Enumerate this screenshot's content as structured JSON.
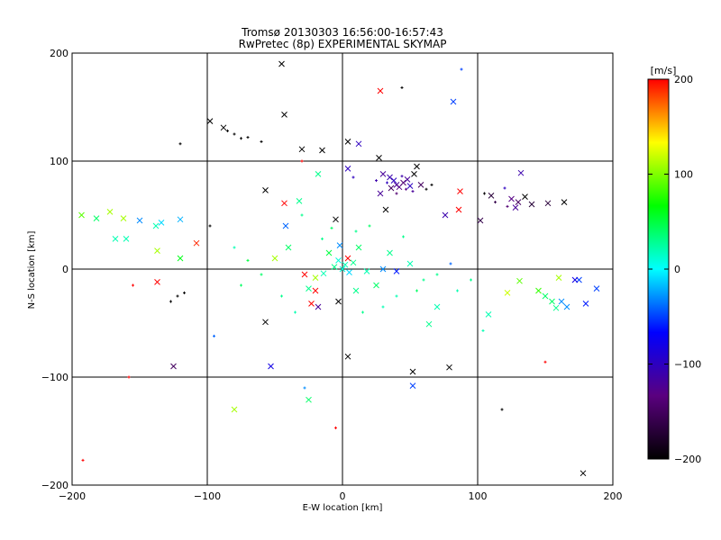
{
  "chart_data": {
    "type": "scatter",
    "title": "Tromsø 20130303 16:56:00-16:57:43",
    "subtitle": "RwPretec (8p) EXPERIMENTAL SKYMAP",
    "xlabel": "E-W location [km]",
    "ylabel": "N-S location [km]",
    "xlim": [
      -200,
      200
    ],
    "ylim": [
      -200,
      200
    ],
    "x_ticks": [
      -200,
      -100,
      0,
      100,
      200
    ],
    "y_ticks": [
      -200,
      -100,
      0,
      100,
      200
    ],
    "x_tick_labels": [
      "−200",
      "−100",
      "0",
      "100",
      "200"
    ],
    "y_tick_labels": [
      "−200",
      "−100",
      "0",
      "100",
      "200"
    ],
    "grid": true,
    "colorbar": {
      "label": "[m/s]",
      "range": [
        -200,
        200
      ],
      "ticks": [
        200,
        100,
        0,
        -100,
        -200
      ],
      "tick_labels": [
        "200",
        "100",
        "0",
        "−100",
        "−200"
      ],
      "colormap": [
        "#000000",
        "#5a007f",
        "#0000ff",
        "#00ffff",
        "#00ff00",
        "#ffff00",
        "#ff0000"
      ]
    },
    "points": [
      {
        "x": -45,
        "y": 190,
        "v": -200,
        "m": "x"
      },
      {
        "x": -43,
        "y": 143,
        "v": -200,
        "m": "x"
      },
      {
        "x": -98,
        "y": 137,
        "v": -200,
        "m": "x"
      },
      {
        "x": -88,
        "y": 131,
        "v": -200,
        "m": "x"
      },
      {
        "x": -85,
        "y": 128,
        "v": -200,
        "m": "+"
      },
      {
        "x": -80,
        "y": 125,
        "v": -200,
        "m": "+"
      },
      {
        "x": -75,
        "y": 121,
        "v": -200,
        "m": "+"
      },
      {
        "x": -70,
        "y": 122,
        "v": -200,
        "m": "+"
      },
      {
        "x": -120,
        "y": 116,
        "v": -200,
        "m": "+"
      },
      {
        "x": -60,
        "y": 118,
        "v": -200,
        "m": "+"
      },
      {
        "x": -30,
        "y": 111,
        "v": -200,
        "m": "x"
      },
      {
        "x": -15,
        "y": 110,
        "v": -200,
        "m": "x"
      },
      {
        "x": 4,
        "y": 118,
        "v": -200,
        "m": "x"
      },
      {
        "x": 12,
        "y": 116,
        "v": -100,
        "m": "x"
      },
      {
        "x": 28,
        "y": 165,
        "v": 200,
        "m": "x"
      },
      {
        "x": 44,
        "y": 168,
        "v": -200,
        "m": "+"
      },
      {
        "x": 82,
        "y": 155,
        "v": -50,
        "m": "x"
      },
      {
        "x": 88,
        "y": 185,
        "v": -50,
        "m": "+"
      },
      {
        "x": 27,
        "y": 103,
        "v": -200,
        "m": "x"
      },
      {
        "x": 4,
        "y": 93,
        "v": -100,
        "m": "x"
      },
      {
        "x": 8,
        "y": 85,
        "v": -100,
        "m": "+"
      },
      {
        "x": -30,
        "y": 100,
        "v": 200,
        "m": "+"
      },
      {
        "x": -18,
        "y": 88,
        "v": 30,
        "m": "x"
      },
      {
        "x": 30,
        "y": 88,
        "v": -120,
        "m": "x"
      },
      {
        "x": 35,
        "y": 85,
        "v": -110,
        "m": "x"
      },
      {
        "x": 38,
        "y": 82,
        "v": -100,
        "m": "x"
      },
      {
        "x": 40,
        "y": 78,
        "v": -120,
        "m": "x"
      },
      {
        "x": 42,
        "y": 76,
        "v": -130,
        "m": "x"
      },
      {
        "x": 45,
        "y": 80,
        "v": -140,
        "m": "x"
      },
      {
        "x": 48,
        "y": 83,
        "v": -120,
        "m": "x"
      },
      {
        "x": 50,
        "y": 77,
        "v": -100,
        "m": "x"
      },
      {
        "x": 53,
        "y": 88,
        "v": -200,
        "m": "x"
      },
      {
        "x": 55,
        "y": 95,
        "v": -200,
        "m": "x"
      },
      {
        "x": 36,
        "y": 75,
        "v": -150,
        "m": "x"
      },
      {
        "x": 33,
        "y": 80,
        "v": -100,
        "m": "+"
      },
      {
        "x": 44,
        "y": 86,
        "v": -110,
        "m": "+"
      },
      {
        "x": 47,
        "y": 74,
        "v": -130,
        "m": "+"
      },
      {
        "x": 52,
        "y": 72,
        "v": -120,
        "m": "+"
      },
      {
        "x": 58,
        "y": 78,
        "v": -150,
        "m": "x"
      },
      {
        "x": 62,
        "y": 74,
        "v": -200,
        "m": "+"
      },
      {
        "x": 66,
        "y": 78,
        "v": -200,
        "m": "+"
      },
      {
        "x": 28,
        "y": 70,
        "v": -120,
        "m": "x"
      },
      {
        "x": 40,
        "y": 70,
        "v": -140,
        "m": "+"
      },
      {
        "x": 25,
        "y": 82,
        "v": -110,
        "m": "+"
      },
      {
        "x": 32,
        "y": 55,
        "v": -200,
        "m": "x"
      },
      {
        "x": 87,
        "y": 72,
        "v": 200,
        "m": "x"
      },
      {
        "x": 86,
        "y": 55,
        "v": 200,
        "m": "x"
      },
      {
        "x": 76,
        "y": 50,
        "v": -110,
        "m": "x"
      },
      {
        "x": 102,
        "y": 45,
        "v": -160,
        "m": "x"
      },
      {
        "x": 120,
        "y": 75,
        "v": -100,
        "m": "+"
      },
      {
        "x": 132,
        "y": 89,
        "v": -110,
        "m": "x"
      },
      {
        "x": 125,
        "y": 65,
        "v": -130,
        "m": "x"
      },
      {
        "x": 130,
        "y": 62,
        "v": -150,
        "m": "x"
      },
      {
        "x": 128,
        "y": 57,
        "v": -120,
        "m": "x"
      },
      {
        "x": 135,
        "y": 67,
        "v": -200,
        "m": "x"
      },
      {
        "x": 140,
        "y": 60,
        "v": -170,
        "m": "x"
      },
      {
        "x": 152,
        "y": 61,
        "v": -170,
        "m": "x"
      },
      {
        "x": 164,
        "y": 62,
        "v": -200,
        "m": "x"
      },
      {
        "x": 110,
        "y": 68,
        "v": -170,
        "m": "x"
      },
      {
        "x": 113,
        "y": 62,
        "v": -160,
        "m": "+"
      },
      {
        "x": 105,
        "y": 70,
        "v": -200,
        "m": "+"
      },
      {
        "x": 122,
        "y": 58,
        "v": -140,
        "m": "+"
      },
      {
        "x": -57,
        "y": 73,
        "v": -200,
        "m": "x"
      },
      {
        "x": -43,
        "y": 61,
        "v": 200,
        "m": "x"
      },
      {
        "x": -32,
        "y": 63,
        "v": 30,
        "m": "x"
      },
      {
        "x": -5,
        "y": 46,
        "v": -200,
        "m": "x"
      },
      {
        "x": -42,
        "y": 40,
        "v": -40,
        "m": "x"
      },
      {
        "x": -193,
        "y": 50,
        "v": 90,
        "m": "x"
      },
      {
        "x": -182,
        "y": 47,
        "v": 40,
        "m": "x"
      },
      {
        "x": -172,
        "y": 53,
        "v": 110,
        "m": "x"
      },
      {
        "x": -162,
        "y": 47,
        "v": 110,
        "m": "x"
      },
      {
        "x": -150,
        "y": 45,
        "v": -30,
        "m": "x"
      },
      {
        "x": -138,
        "y": 40,
        "v": 20,
        "m": "x"
      },
      {
        "x": -134,
        "y": 43,
        "v": -10,
        "m": "x"
      },
      {
        "x": -120,
        "y": 46,
        "v": -20,
        "m": "x"
      },
      {
        "x": -168,
        "y": 28,
        "v": 20,
        "m": "x"
      },
      {
        "x": -160,
        "y": 28,
        "v": 20,
        "m": "x"
      },
      {
        "x": -137,
        "y": 17,
        "v": 110,
        "m": "x"
      },
      {
        "x": -120,
        "y": 10,
        "v": 60,
        "m": "x"
      },
      {
        "x": -108,
        "y": 24,
        "v": 190,
        "m": "x"
      },
      {
        "x": -98,
        "y": 40,
        "v": -200,
        "m": "+"
      },
      {
        "x": -155,
        "y": -15,
        "v": 200,
        "m": "+"
      },
      {
        "x": -137,
        "y": -12,
        "v": 200,
        "m": "x"
      },
      {
        "x": -127,
        "y": -30,
        "v": -200,
        "m": "+"
      },
      {
        "x": -122,
        "y": -25,
        "v": -200,
        "m": "+"
      },
      {
        "x": -117,
        "y": -22,
        "v": -200,
        "m": "+"
      },
      {
        "x": -125,
        "y": -90,
        "v": -150,
        "m": "x"
      },
      {
        "x": -158,
        "y": -100,
        "v": 200,
        "m": "+"
      },
      {
        "x": -192,
        "y": -177,
        "v": 200,
        "m": "+"
      },
      {
        "x": -57,
        "y": -49,
        "v": -200,
        "m": "x"
      },
      {
        "x": -53,
        "y": -90,
        "v": -80,
        "m": "x"
      },
      {
        "x": -80,
        "y": -130,
        "v": 110,
        "m": "x"
      },
      {
        "x": -25,
        "y": -121,
        "v": 40,
        "m": "x"
      },
      {
        "x": -23,
        "y": -32,
        "v": 200,
        "m": "x"
      },
      {
        "x": -20,
        "y": -20,
        "v": 200,
        "m": "x"
      },
      {
        "x": -18,
        "y": -35,
        "v": -120,
        "m": "x"
      },
      {
        "x": -3,
        "y": -30,
        "v": -200,
        "m": "x"
      },
      {
        "x": 4,
        "y": -81,
        "v": -200,
        "m": "x"
      },
      {
        "x": 52,
        "y": -95,
        "v": -200,
        "m": "x"
      },
      {
        "x": 79,
        "y": -91,
        "v": -200,
        "m": "x"
      },
      {
        "x": 52,
        "y": -108,
        "v": -50,
        "m": "x"
      },
      {
        "x": 70,
        "y": -35,
        "v": 20,
        "m": "x"
      },
      {
        "x": 64,
        "y": -51,
        "v": 30,
        "m": "x"
      },
      {
        "x": 108,
        "y": -42,
        "v": 20,
        "m": "x"
      },
      {
        "x": 122,
        "y": -22,
        "v": 120,
        "m": "x"
      },
      {
        "x": 131,
        "y": -11,
        "v": 90,
        "m": "x"
      },
      {
        "x": 145,
        "y": -20,
        "v": 80,
        "m": "x"
      },
      {
        "x": 150,
        "y": -25,
        "v": 40,
        "m": "x"
      },
      {
        "x": 155,
        "y": -30,
        "v": 40,
        "m": "x"
      },
      {
        "x": 158,
        "y": -36,
        "v": 30,
        "m": "x"
      },
      {
        "x": 162,
        "y": -30,
        "v": -30,
        "m": "x"
      },
      {
        "x": 166,
        "y": -35,
        "v": -30,
        "m": "x"
      },
      {
        "x": 175,
        "y": -10,
        "v": -50,
        "m": "x"
      },
      {
        "x": 188,
        "y": -18,
        "v": -50,
        "m": "x"
      },
      {
        "x": 172,
        "y": -10,
        "v": -80,
        "m": "x"
      },
      {
        "x": 160,
        "y": -8,
        "v": 110,
        "m": "x"
      },
      {
        "x": 180,
        "y": -32,
        "v": -60,
        "m": "x"
      },
      {
        "x": 178,
        "y": -189,
        "v": -200,
        "m": "x"
      },
      {
        "x": 118,
        "y": -130,
        "v": -200,
        "m": "+"
      },
      {
        "x": 150,
        "y": -86,
        "v": 200,
        "m": "+"
      },
      {
        "x": 104,
        "y": -57,
        "v": 20,
        "m": "+"
      },
      {
        "x": -5,
        "y": -147,
        "v": 200,
        "m": "+"
      },
      {
        "x": -28,
        "y": -110,
        "v": -30,
        "m": "+"
      },
      {
        "x": -95,
        "y": -62,
        "v": -40,
        "m": "+"
      },
      {
        "x": 0,
        "y": 0,
        "v": 10,
        "m": "x"
      },
      {
        "x": 2,
        "y": 4,
        "v": 20,
        "m": "x"
      },
      {
        "x": -3,
        "y": 8,
        "v": 10,
        "m": "x"
      },
      {
        "x": 5,
        "y": -3,
        "v": -10,
        "m": "x"
      },
      {
        "x": -6,
        "y": 2,
        "v": 30,
        "m": "x"
      },
      {
        "x": 4,
        "y": 10,
        "v": 200,
        "m": "x"
      },
      {
        "x": -10,
        "y": 15,
        "v": 50,
        "m": "x"
      },
      {
        "x": 8,
        "y": 6,
        "v": 30,
        "m": "x"
      },
      {
        "x": -14,
        "y": -4,
        "v": 20,
        "m": "x"
      },
      {
        "x": -20,
        "y": -8,
        "v": 110,
        "m": "x"
      },
      {
        "x": -28,
        "y": -5,
        "v": 200,
        "m": "x"
      },
      {
        "x": 18,
        "y": -2,
        "v": 20,
        "m": "x"
      },
      {
        "x": 30,
        "y": 0,
        "v": -30,
        "m": "x"
      },
      {
        "x": 40,
        "y": -2,
        "v": -60,
        "m": "x"
      },
      {
        "x": 12,
        "y": 20,
        "v": 40,
        "m": "x"
      },
      {
        "x": -2,
        "y": 22,
        "v": -30,
        "m": "x"
      },
      {
        "x": -40,
        "y": 20,
        "v": 40,
        "m": "x"
      },
      {
        "x": -50,
        "y": 10,
        "v": 110,
        "m": "x"
      },
      {
        "x": -25,
        "y": -18,
        "v": 30,
        "m": "x"
      },
      {
        "x": 10,
        "y": -20,
        "v": 30,
        "m": "x"
      },
      {
        "x": 25,
        "y": -15,
        "v": 40,
        "m": "x"
      },
      {
        "x": 35,
        "y": 15,
        "v": 30,
        "m": "x"
      },
      {
        "x": 50,
        "y": 5,
        "v": 20,
        "m": "x"
      },
      {
        "x": -60,
        "y": -5,
        "v": 40,
        "m": "+"
      },
      {
        "x": -70,
        "y": 8,
        "v": 50,
        "m": "+"
      },
      {
        "x": 60,
        "y": -10,
        "v": 30,
        "m": "+"
      },
      {
        "x": 70,
        "y": -5,
        "v": 30,
        "m": "+"
      },
      {
        "x": 80,
        "y": 5,
        "v": -40,
        "m": "+"
      },
      {
        "x": 20,
        "y": 40,
        "v": 40,
        "m": "+"
      },
      {
        "x": 10,
        "y": 35,
        "v": 30,
        "m": "+"
      },
      {
        "x": -8,
        "y": 38,
        "v": 40,
        "m": "+"
      },
      {
        "x": -15,
        "y": 28,
        "v": 30,
        "m": "+"
      },
      {
        "x": 15,
        "y": -40,
        "v": 30,
        "m": "+"
      },
      {
        "x": 30,
        "y": -35,
        "v": 20,
        "m": "+"
      },
      {
        "x": -35,
        "y": -40,
        "v": 20,
        "m": "+"
      },
      {
        "x": -45,
        "y": -25,
        "v": 30,
        "m": "+"
      },
      {
        "x": 40,
        "y": -25,
        "v": 20,
        "m": "+"
      },
      {
        "x": 55,
        "y": -20,
        "v": 40,
        "m": "+"
      },
      {
        "x": 85,
        "y": -20,
        "v": 20,
        "m": "+"
      },
      {
        "x": 95,
        "y": -10,
        "v": 30,
        "m": "+"
      },
      {
        "x": -80,
        "y": 20,
        "v": 20,
        "m": "+"
      },
      {
        "x": -75,
        "y": -15,
        "v": 40,
        "m": "+"
      },
      {
        "x": 45,
        "y": 30,
        "v": 30,
        "m": "+"
      },
      {
        "x": -30,
        "y": 50,
        "v": 30,
        "m": "+"
      }
    ]
  }
}
